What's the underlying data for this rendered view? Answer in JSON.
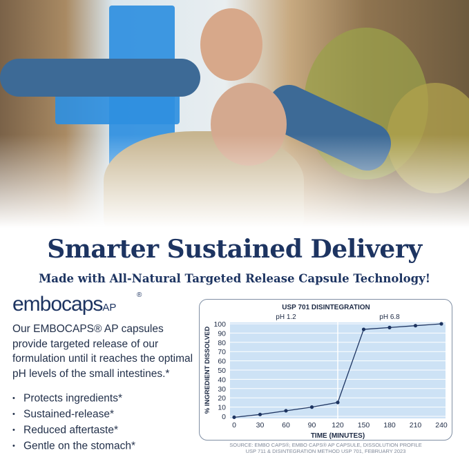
{
  "headline": "Smarter Sustained Delivery",
  "subheadline": "Made with All-Natural Targeted Release Capsule Technology!",
  "logo": {
    "text": "embocaps",
    "suffix": "AP",
    "mark": "®"
  },
  "description": "Our EMBOCAPS® AP capsules provide targeted release of our formulation until it reaches the optimal pH levels of the small intestines.*",
  "bullets": [
    "Protects ingredients*",
    "Sustained-release*",
    "Reduced aftertaste*",
    "Gentle on the stomach*"
  ],
  "source": [
    "SOURCE: EMBO CAPS®, EMBO CAPS® AP CAPSULE, DISSOLUTION PROFILE",
    "USP 711 & DISINTEGRATION METHOD USP 701, FEBRUARY 2023"
  ],
  "colors": {
    "navy": "#1d3461",
    "plot_bg": "#cde2f5",
    "line": "#1d3461",
    "cross": "#2f8fe0"
  },
  "chart_data": {
    "type": "line",
    "title": "USP 701 DISINTEGRATION",
    "xlabel": "TIME (MINUTES)",
    "ylabel": "% INGREDIENT DISSOLVED",
    "x": [
      0,
      30,
      60,
      90,
      120,
      150,
      180,
      210,
      240
    ],
    "values": [
      -1,
      2,
      6,
      10,
      15,
      94,
      96,
      98,
      100
    ],
    "xticks": [
      0,
      30,
      60,
      90,
      120,
      150,
      180,
      210,
      240
    ],
    "yticks": [
      0,
      10,
      20,
      30,
      40,
      50,
      60,
      70,
      80,
      90,
      100
    ],
    "xlim": [
      0,
      240
    ],
    "ylim": [
      0,
      100
    ],
    "grid": true,
    "annotations": [
      {
        "text": "pH 1.2",
        "region": [
          0,
          120
        ]
      },
      {
        "text": "pH 6.8",
        "region": [
          120,
          240
        ]
      }
    ],
    "divider_x": 120
  }
}
